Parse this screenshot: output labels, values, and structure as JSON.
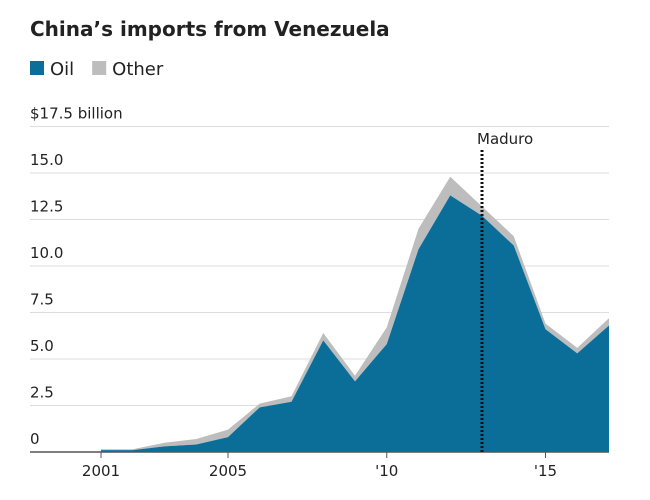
{
  "chart_data": {
    "type": "stacked-area",
    "title": "China’s imports from Venezuela",
    "x": [
      2001,
      2002,
      2003,
      2004,
      2005,
      2006,
      2007,
      2008,
      2009,
      2010,
      2011,
      2012,
      2013,
      2014,
      2015,
      2016,
      2017
    ],
    "series": [
      {
        "name": "Oil",
        "color": "#0b6e99",
        "values": [
          0.1,
          0.1,
          0.3,
          0.4,
          0.8,
          2.4,
          2.7,
          6.0,
          3.8,
          5.8,
          10.9,
          13.8,
          12.7,
          11.1,
          6.6,
          5.3,
          6.8
        ]
      },
      {
        "name": "Other",
        "color": "#bdbdbd",
        "values": [
          0.05,
          0.05,
          0.2,
          0.3,
          0.4,
          0.2,
          0.3,
          0.4,
          0.3,
          0.9,
          1.1,
          1.0,
          0.5,
          0.5,
          0.3,
          0.3,
          0.4
        ]
      }
    ],
    "xlim": [
      1999,
      2017
    ],
    "xticks": [
      2001,
      2005,
      {
        "value": 2010,
        "label": "'10"
      },
      {
        "value": 2015,
        "label": "'15"
      }
    ],
    "ylim": [
      0,
      17.5
    ],
    "yticks": [
      0,
      2.5,
      {
        "value": 5,
        "label": "5.0"
      },
      7.5,
      {
        "value": 10,
        "label": "10.0"
      },
      12.5,
      {
        "value": 15,
        "label": "15.0"
      },
      {
        "value": 17.5,
        "label": "$17.5 billion"
      }
    ],
    "grid": true,
    "annotations": [
      {
        "x": 2013,
        "text": "Maduro"
      }
    ]
  }
}
